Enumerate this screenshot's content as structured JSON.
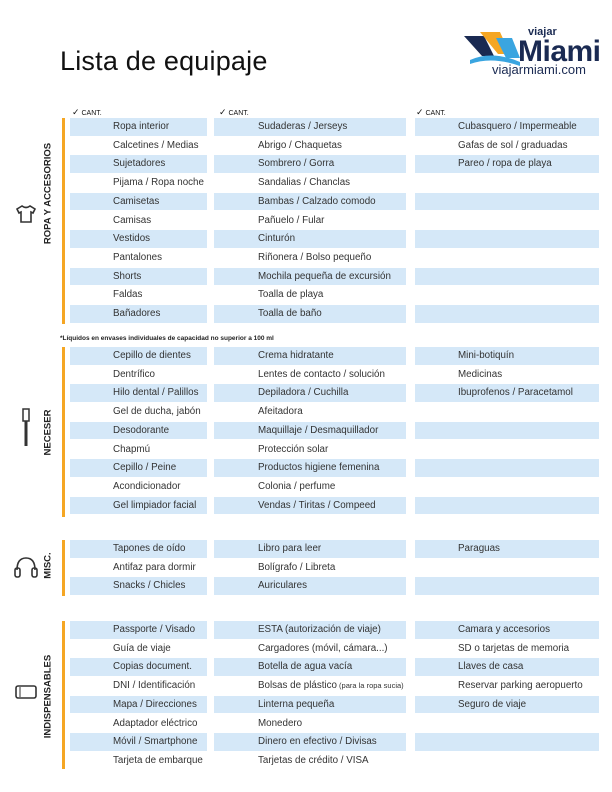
{
  "title": "Lista de equipaje",
  "logo": {
    "small": "viajar",
    "big": "Miami",
    "url": "viajarmiami.com"
  },
  "check_label": "CANT.",
  "note": "*Líquidos en envases individuales de capacidad no superior a 100 ml",
  "colors": {
    "accent_bar": "#f5a623",
    "row_shade": "#d5e8f8",
    "logo_navy": "#1a2a52"
  },
  "sections": [
    {
      "label": "ROPA Y ACCESORIOS",
      "icon": "tshirt-icon",
      "col1": [
        "Ropa interior",
        "Calcetines / Medias",
        "Sujetadores",
        "Pijama / Ropa noche",
        "Camisetas",
        "Camisas",
        "Vestidos",
        "Pantalones",
        "Shorts",
        "Faldas",
        "Bañadores"
      ],
      "col2": [
        "Sudaderas / Jerseys",
        "Abrigo / Chaquetas",
        "Sombrero / Gorra",
        "Sandalias / Chanclas",
        "Bambas / Calzado comodo",
        "Pañuelo / Fular",
        "Cinturón",
        "Riñonera / Bolso pequeño",
        "Mochila pequeña de excursión",
        "Toalla de playa",
        "Toalla de baño"
      ],
      "col3": [
        "Cubasquero / Impermeable",
        "Gafas de sol / graduadas",
        "Pareo / ropa de playa",
        "",
        "",
        "",
        "",
        "",
        "",
        "",
        ""
      ]
    },
    {
      "label": "NECESER",
      "icon": "toothbrush-icon",
      "col1": [
        "Cepillo de dientes",
        "Dentrífico",
        "Hilo dental / Palillos",
        "Gel de ducha, jabón",
        "Desodorante",
        "Chapmú",
        "Cepillo / Peine",
        "Acondicionador",
        "Gel limpiador facial"
      ],
      "col2": [
        "Crema hidratante",
        "Lentes de contacto / solución",
        "Depiladora / Cuchilla",
        "Afeitadora",
        "Maquillaje / Desmaquillador",
        "Protección solar",
        "Productos higiene femenina",
        "Colonia / perfume",
        "Vendas / Tiritas / Compeed"
      ],
      "col3": [
        "Mini-botiquín",
        "Medicinas",
        "Ibuprofenos / Paracetamol",
        "",
        "",
        "",
        "",
        "",
        ""
      ]
    },
    {
      "label": "MISC.",
      "icon": "headphones-icon",
      "col1": [
        "Tapones de oído",
        "Antifaz para dormir",
        "Snacks / Chicles"
      ],
      "col2": [
        "Libro para leer",
        "Bolígrafo / Libreta",
        "Auriculares"
      ],
      "col3": [
        "Paraguas",
        "",
        ""
      ]
    },
    {
      "label": "INDISPENSABLES",
      "icon": "smartphone-icon",
      "col1": [
        "Passporte / Visado",
        "Guía de viaje",
        "Copias document.",
        "DNI / Identificación",
        "Mapa / Direcciones",
        "Adaptador eléctrico",
        "Móvil / Smartphone",
        "Tarjeta de embarque"
      ],
      "col2": [
        "ESTA (autorización de viaje)",
        "Cargadores (móvil, cámara...)",
        "Botella de agua vacía",
        "Bolsas de plástico",
        "Linterna pequeña",
        "Monedero",
        "Dinero en efectivo / Divisas",
        "Tarjetas de crédito / VISA"
      ],
      "col2_extra": "(para la ropa sucia)",
      "col3": [
        "Camara y accesorios",
        "SD o tarjetas de memoria",
        "Llaves de casa",
        "Reservar parking aeropuerto",
        "Seguro de viaje",
        "",
        "",
        ""
      ]
    }
  ]
}
